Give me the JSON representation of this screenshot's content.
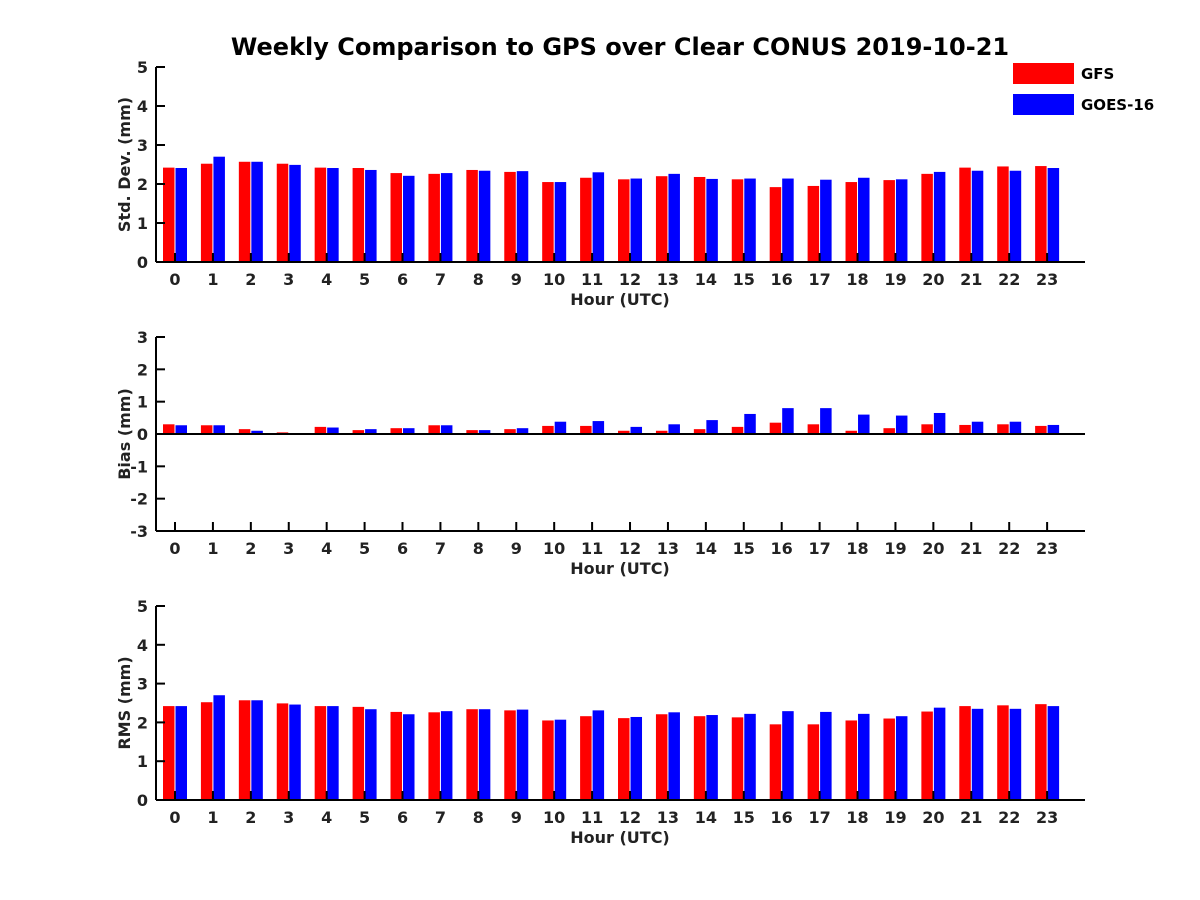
{
  "title": "Weekly Comparison to GPS over Clear CONUS 2019-10-21",
  "legend": {
    "placement": "top-right",
    "entries": [
      {
        "name": "GFS",
        "color": "#ff0000"
      },
      {
        "name": "GOES-16",
        "color": "#0000ff"
      }
    ]
  },
  "chart_data": [
    {
      "type": "bar",
      "xlabel": "Hour (UTC)",
      "ylabel": "Std. Dev. (mm)",
      "ylim": [
        0,
        5
      ],
      "yticks": [
        0,
        1,
        2,
        3,
        4,
        5
      ],
      "grid": false,
      "categories": [
        "0",
        "1",
        "2",
        "3",
        "4",
        "5",
        "6",
        "7",
        "8",
        "9",
        "10",
        "11",
        "12",
        "13",
        "14",
        "15",
        "16",
        "17",
        "18",
        "19",
        "20",
        "21",
        "22",
        "23"
      ],
      "series": [
        {
          "name": "GFS",
          "color": "#ff0000",
          "values": [
            2.42,
            2.52,
            2.57,
            2.52,
            2.42,
            2.41,
            2.28,
            2.26,
            2.36,
            2.31,
            2.05,
            2.16,
            2.12,
            2.2,
            2.18,
            2.12,
            1.92,
            1.95,
            2.05,
            2.1,
            2.26,
            2.42,
            2.45,
            2.46
          ]
        },
        {
          "name": "GOES-16",
          "color": "#0000ff",
          "values": [
            2.41,
            2.7,
            2.57,
            2.49,
            2.41,
            2.36,
            2.21,
            2.28,
            2.34,
            2.33,
            2.05,
            2.3,
            2.14,
            2.26,
            2.13,
            2.14,
            2.14,
            2.11,
            2.16,
            2.12,
            2.31,
            2.34,
            2.34,
            2.41
          ]
        }
      ]
    },
    {
      "type": "bar",
      "xlabel": "Hour (UTC)",
      "ylabel": "Bias (mm)",
      "ylim": [
        -3,
        3
      ],
      "yticks": [
        -3,
        -2,
        -1,
        0,
        1,
        2,
        3
      ],
      "grid": false,
      "categories": [
        "0",
        "1",
        "2",
        "3",
        "4",
        "5",
        "6",
        "7",
        "8",
        "9",
        "10",
        "11",
        "12",
        "13",
        "14",
        "15",
        "16",
        "17",
        "18",
        "19",
        "20",
        "21",
        "22",
        "23"
      ],
      "series": [
        {
          "name": "GFS",
          "color": "#ff0000",
          "values": [
            0.3,
            0.27,
            0.15,
            0.05,
            0.22,
            0.12,
            0.18,
            0.27,
            0.12,
            0.15,
            0.25,
            0.25,
            0.1,
            0.1,
            0.15,
            0.22,
            0.35,
            0.3,
            0.1,
            0.18,
            0.3,
            0.28,
            0.3,
            0.25
          ]
        },
        {
          "name": "GOES-16",
          "color": "#0000ff",
          "values": [
            0.27,
            0.27,
            0.1,
            0.02,
            0.2,
            0.15,
            0.18,
            0.27,
            0.12,
            0.18,
            0.38,
            0.4,
            0.22,
            0.3,
            0.43,
            0.62,
            0.8,
            0.8,
            0.6,
            0.57,
            0.65,
            0.38,
            0.38,
            0.28
          ]
        }
      ]
    },
    {
      "type": "bar",
      "xlabel": "Hour (UTC)",
      "ylabel": "RMS (mm)",
      "ylim": [
        0,
        5
      ],
      "yticks": [
        0,
        1,
        2,
        3,
        4,
        5
      ],
      "grid": false,
      "categories": [
        "0",
        "1",
        "2",
        "3",
        "4",
        "5",
        "6",
        "7",
        "8",
        "9",
        "10",
        "11",
        "12",
        "13",
        "14",
        "15",
        "16",
        "17",
        "18",
        "19",
        "20",
        "21",
        "22",
        "23"
      ],
      "series": [
        {
          "name": "GFS",
          "color": "#ff0000",
          "values": [
            2.42,
            2.52,
            2.57,
            2.49,
            2.42,
            2.4,
            2.27,
            2.26,
            2.34,
            2.31,
            2.05,
            2.16,
            2.11,
            2.21,
            2.16,
            2.13,
            1.95,
            1.95,
            2.05,
            2.1,
            2.28,
            2.42,
            2.44,
            2.47
          ]
        },
        {
          "name": "GOES-16",
          "color": "#0000ff",
          "values": [
            2.42,
            2.7,
            2.57,
            2.46,
            2.42,
            2.34,
            2.21,
            2.29,
            2.34,
            2.33,
            2.07,
            2.31,
            2.14,
            2.26,
            2.19,
            2.22,
            2.29,
            2.27,
            2.22,
            2.16,
            2.38,
            2.35,
            2.35,
            2.42
          ]
        }
      ]
    }
  ]
}
